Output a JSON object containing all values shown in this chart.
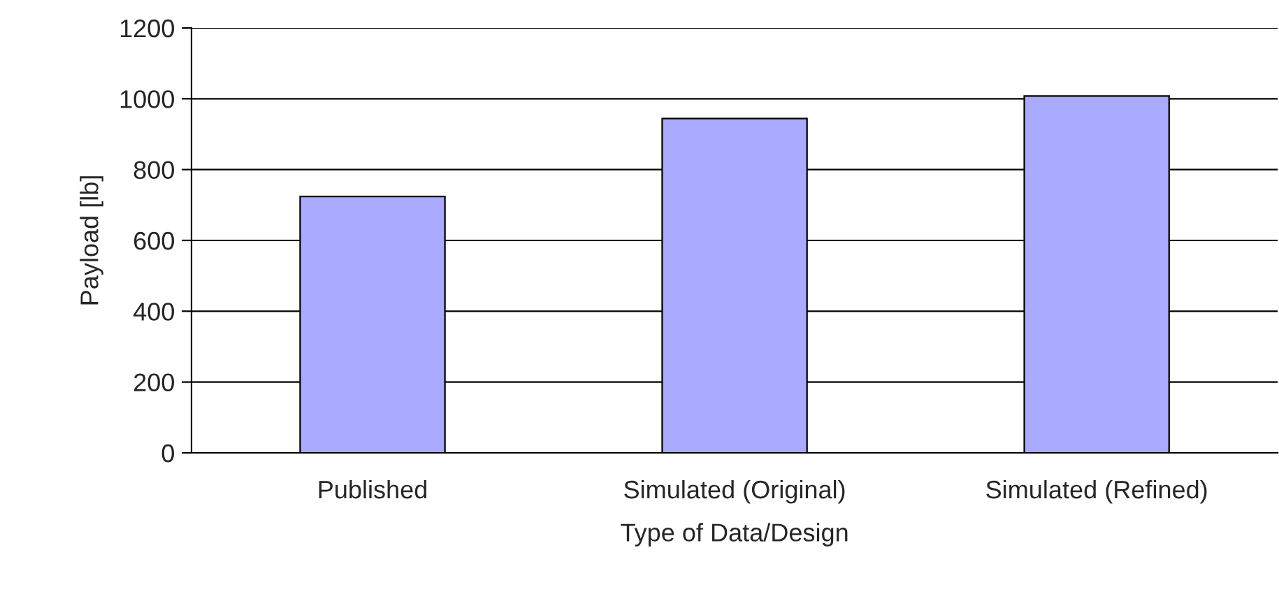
{
  "chart_data": {
    "type": "bar",
    "xlabel": "Type of Data/Design",
    "ylabel": "Payload [lb]",
    "categories": [
      "Published",
      "Simulated (Original)",
      "Simulated (Refined)"
    ],
    "series": [
      {
        "color": "#aaaaff",
        "values": [
          724,
          944,
          1008
        ]
      }
    ],
    "ylim": [
      0,
      1200
    ],
    "yticks": [
      0,
      200,
      400,
      600,
      800,
      1000,
      1200
    ],
    "grid": "y",
    "legend": false
  }
}
